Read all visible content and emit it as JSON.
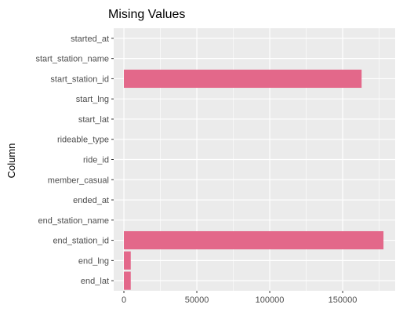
{
  "chart_data": {
    "type": "bar",
    "orientation": "horizontal",
    "title": "Mising Values",
    "xlabel": "",
    "ylabel": "Column",
    "categories": [
      "started_at",
      "start_station_name",
      "start_station_id",
      "start_lng",
      "start_lat",
      "rideable_type",
      "ride_id",
      "member_casual",
      "ended_at",
      "end_station_name",
      "end_station_id",
      "end_lng",
      "end_lat"
    ],
    "values": [
      0,
      0,
      163000,
      0,
      0,
      0,
      0,
      0,
      0,
      0,
      178000,
      4700,
      4700
    ],
    "xlim": [
      -7000,
      186000
    ],
    "xticks": [
      0,
      50000,
      100000,
      150000
    ],
    "xtick_labels": [
      "0",
      "50000",
      "100000",
      "150000"
    ],
    "grid": true,
    "legend": "none",
    "colors": {
      "bar": "#e3688a",
      "panel": "#ebebeb",
      "grid": "#ffffff",
      "tick": "#333333"
    }
  }
}
